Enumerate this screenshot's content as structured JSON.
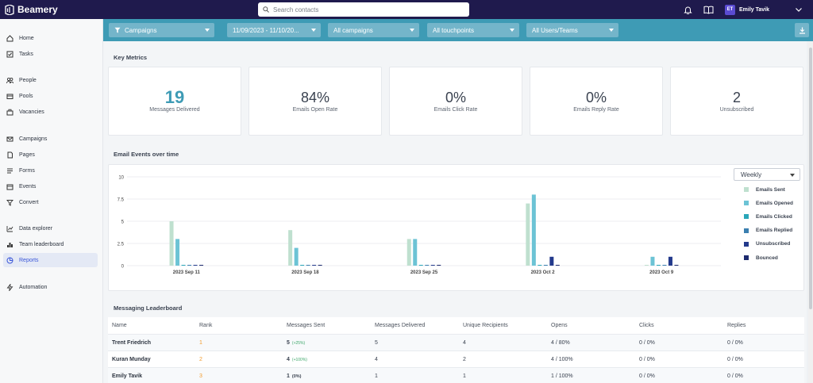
{
  "app": {
    "name": "Beamery"
  },
  "search": {
    "placeholder": "Search contacts"
  },
  "user": {
    "initials": "ET",
    "name": "Emily Tavik"
  },
  "sidebar": {
    "items": [
      {
        "label": "Home",
        "icon": "home-icon"
      },
      {
        "label": "Tasks",
        "icon": "tasks-icon"
      },
      {
        "label": "People",
        "icon": "people-icon"
      },
      {
        "label": "Pools",
        "icon": "pools-icon"
      },
      {
        "label": "Vacancies",
        "icon": "vacancies-icon"
      },
      {
        "label": "Campaigns",
        "icon": "campaigns-icon"
      },
      {
        "label": "Pages",
        "icon": "pages-icon"
      },
      {
        "label": "Forms",
        "icon": "forms-icon"
      },
      {
        "label": "Events",
        "icon": "events-icon"
      },
      {
        "label": "Convert",
        "icon": "convert-icon"
      },
      {
        "label": "Data explorer",
        "icon": "data-explorer-icon"
      },
      {
        "label": "Team leaderboard",
        "icon": "leaderboard-icon"
      },
      {
        "label": "Reports",
        "icon": "reports-icon",
        "active": true
      },
      {
        "label": "Automation",
        "icon": "automation-icon"
      }
    ]
  },
  "filters": {
    "type": "Campaigns",
    "date_range": "11/09/2023 - 11/10/20...",
    "campaigns": "All campaigns",
    "touchpoints": "All touchpoints",
    "users": "All Users/Teams"
  },
  "key_metrics": {
    "title": "Key Metrics",
    "cards": [
      {
        "value": "19",
        "label": "Messages Delivered"
      },
      {
        "value": "84%",
        "label": "Emails Open Rate"
      },
      {
        "value": "0%",
        "label": "Emails Click Rate"
      },
      {
        "value": "0%",
        "label": "Emails Reply Rate"
      },
      {
        "value": "2",
        "label": "Unsubscribed"
      }
    ]
  },
  "email_events": {
    "title": "Email Events over time",
    "period": "Weekly"
  },
  "chart_data": {
    "type": "bar",
    "categories": [
      "2023 Sep 11",
      "2023 Sep 18",
      "2023 Sep 25",
      "2023 Oct 2",
      "2023 Oct 9"
    ],
    "ylim": [
      0,
      10
    ],
    "yticks": [
      "0",
      "2.5",
      "5",
      "7.5",
      "10"
    ],
    "grid": true,
    "legend": "right",
    "series": [
      {
        "name": "Emails Sent",
        "color": "#bfe0cf",
        "values": [
          5,
          4,
          3,
          7,
          0
        ]
      },
      {
        "name": "Emails Opened",
        "color": "#6cc3d5",
        "values": [
          3,
          2,
          3,
          8,
          1
        ]
      },
      {
        "name": "Emails Clicked",
        "color": "#2aa6b8",
        "values": [
          0,
          0,
          0,
          0,
          0
        ]
      },
      {
        "name": "Emails Replied",
        "color": "#3b7fb0",
        "values": [
          0,
          0,
          0,
          0,
          0
        ]
      },
      {
        "name": "Unsubscribed",
        "color": "#233a8c",
        "values": [
          0,
          0,
          0,
          1,
          1
        ]
      },
      {
        "name": "Bounced",
        "color": "#1d2a6e",
        "values": [
          0,
          0,
          0,
          0,
          0
        ]
      }
    ]
  },
  "leaderboard": {
    "title": "Messaging Leaderboard",
    "columns": [
      "Name",
      "Rank",
      "Messages Sent",
      "Messages Delivered",
      "Unique Recipients",
      "Opens",
      "Clicks",
      "Replies"
    ],
    "rows": [
      {
        "name": "Trent Friedrich",
        "rank": "1",
        "sent": "5",
        "sent_change": "(+25%)",
        "delivered": "5",
        "recipients": "4",
        "opens": "4 / 80%",
        "clicks": "0 / 0%",
        "replies": "0 / 0%"
      },
      {
        "name": "Kuran Munday",
        "rank": "2",
        "sent": "4",
        "sent_change": "(+100%)",
        "delivered": "4",
        "recipients": "2",
        "opens": "4 / 100%",
        "clicks": "0 / 0%",
        "replies": "0 / 0%"
      },
      {
        "name": "Emily Tavik",
        "rank": "3",
        "sent": "1",
        "sent_change": "(0%)",
        "delivered": "1",
        "recipients": "1",
        "opens": "1 / 100%",
        "clicks": "0 / 0%",
        "replies": "0 / 0%"
      }
    ]
  }
}
